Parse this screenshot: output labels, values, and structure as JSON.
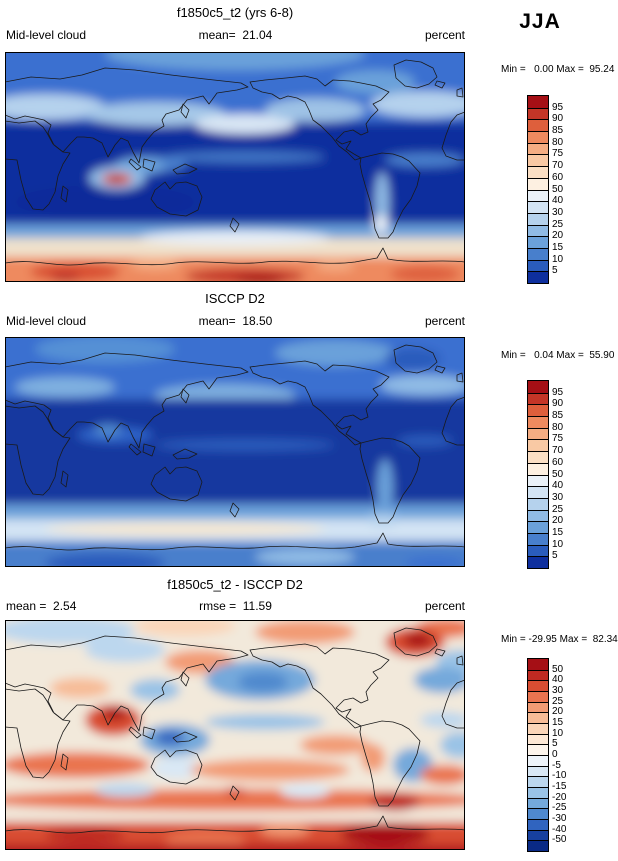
{
  "season": "JJA",
  "colors": {
    "background": "#ffffff",
    "map_border": "#000000",
    "coastline": "#1a1a1a"
  },
  "panels": [
    {
      "title": "f1850c5_t2 (yrs 6-8)",
      "header_left": "Mid-level cloud",
      "header_center": "mean=  21.04",
      "header_right": "percent",
      "stats_line": "Min =   0.00 Max =  95.24",
      "colorbar": {
        "ticks": [
          "95",
          "90",
          "85",
          "80",
          "75",
          "70",
          "60",
          "50",
          "40",
          "30",
          "25",
          "20",
          "15",
          "10",
          "5"
        ],
        "colors": [
          "#a50f15",
          "#c43527",
          "#de5f3c",
          "#ee8a5f",
          "#f5ad83",
          "#f9c9a4",
          "#fbdfc4",
          "#fdf0e1",
          "#eaf1f8",
          "#d3e4f4",
          "#b5d2ed",
          "#90bbe5",
          "#6ba1da",
          "#487fcc",
          "#2a5cbc",
          "#0e2f9e"
        ]
      }
    },
    {
      "title": "ISCCP D2",
      "header_left": "Mid-level cloud",
      "header_center": "mean=  18.50",
      "header_right": "percent",
      "stats_line": "Min =   0.04 Max =  55.90",
      "colorbar": {
        "ticks": [
          "95",
          "90",
          "85",
          "80",
          "75",
          "70",
          "60",
          "50",
          "40",
          "30",
          "25",
          "20",
          "15",
          "10",
          "5"
        ],
        "colors": [
          "#a50f15",
          "#c43527",
          "#de5f3c",
          "#ee8a5f",
          "#f5ad83",
          "#f9c9a4",
          "#fbdfc4",
          "#fdf0e1",
          "#eaf1f8",
          "#d3e4f4",
          "#b5d2ed",
          "#90bbe5",
          "#6ba1da",
          "#487fcc",
          "#2a5cbc",
          "#0e2f9e"
        ]
      }
    },
    {
      "title": "f1850c5_t2 - ISCCP D2",
      "header_left": "mean =  2.54",
      "header_center": "rmse =  11.59",
      "header_right": "percent",
      "stats_line": "Min = -29.95 Max =  82.34",
      "colorbar": {
        "ticks": [
          "50",
          "40",
          "30",
          "25",
          "20",
          "15",
          "10",
          "5",
          "0",
          "-5",
          "-10",
          "-15",
          "-20",
          "-25",
          "-30",
          "-40",
          "-50"
        ],
        "colors": [
          "#a50f15",
          "#bf2a22",
          "#d94d32",
          "#ea7450",
          "#f29b74",
          "#f7bc97",
          "#fad5b8",
          "#fde8d5",
          "#fdf5ec",
          "#eef4fa",
          "#d9e8f5",
          "#bcd7ee",
          "#9ac3e6",
          "#74a9db",
          "#4f89ce",
          "#3064bf",
          "#17409f",
          "#0a2a85"
        ]
      }
    }
  ],
  "chart_data": [
    {
      "type": "heatmap",
      "subtype": "filled-contour-global-map",
      "title": "f1850c5_t2 (yrs 6-8)",
      "season": "JJA",
      "variable": "Mid-level cloud",
      "units": "percent",
      "stats": {
        "mean": 21.04,
        "min": 0.0,
        "max": 95.24
      },
      "contour_levels": [
        5,
        10,
        15,
        20,
        25,
        30,
        40,
        50,
        60,
        70,
        75,
        80,
        85,
        90,
        95
      ],
      "palette": "blue-low-to-red-high",
      "legend_position": "right",
      "notes": "Model JJA mid-level cloud: low values (dark blue) over tropics/subtropics, lighter mid-latitude storm tracks, high values (orange/red) over Antarctica and a red maximum over the Tibetan Plateau."
    },
    {
      "type": "heatmap",
      "subtype": "filled-contour-global-map",
      "title": "ISCCP D2",
      "season": "JJA",
      "variable": "Mid-level cloud",
      "units": "percent",
      "stats": {
        "mean": 18.5,
        "min": 0.04,
        "max": 55.9
      },
      "contour_levels": [
        5,
        10,
        15,
        20,
        25,
        30,
        40,
        50,
        60,
        70,
        75,
        80,
        85,
        90,
        95
      ],
      "palette": "blue-low-to-red-high",
      "legend_position": "right",
      "notes": "Observed JJA mid-level cloud: predominantly blue (low-moderate) everywhere, pale band over Southern Ocean, no red extremes."
    },
    {
      "type": "heatmap",
      "subtype": "filled-contour-global-map-difference",
      "title": "f1850c5_t2 - ISCCP D2",
      "season": "JJA",
      "variable": "Mid-level cloud difference",
      "units": "percent",
      "stats": {
        "mean": 2.54,
        "rmse": 11.59,
        "min": -29.95,
        "max": 82.34
      },
      "contour_levels": [
        -50,
        -40,
        -30,
        -25,
        -20,
        -15,
        -10,
        -5,
        0,
        5,
        10,
        15,
        20,
        25,
        30,
        40,
        50
      ],
      "palette": "diverging-blue-negative-red-positive",
      "legend_position": "right",
      "notes": "Difference map: strong positive (red) over Antarctica, Greenland, Tibet/India and subtropical bands; negative (blue) over NE Pacific, N Atlantic and tropical west Pacific."
    }
  ]
}
